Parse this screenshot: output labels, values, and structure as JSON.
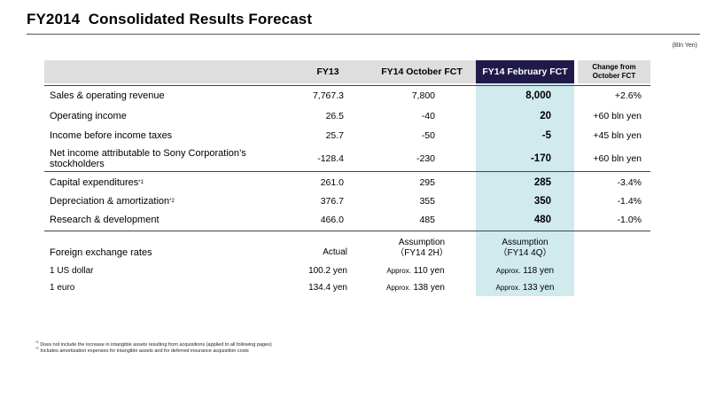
{
  "title": "FY2014  Consolidated Results Forecast",
  "unit": "(Bln Yen)",
  "headers": {
    "fy13": "FY13",
    "oct": "FY14 October FCT",
    "feb": "FY14 February FCT",
    "chg_line1": "Change from",
    "chg_line2": "October FCT"
  },
  "rows": [
    {
      "label": "Sales & operating revenue",
      "fy13": "7,767.3",
      "oct": "7,800",
      "feb": "8,000",
      "chg": "+2.6%"
    },
    {
      "label": "Operating income",
      "fy13": "26.5",
      "oct": "-40",
      "feb": "20",
      "chg": "+60 bln yen"
    },
    {
      "label": "Income before income taxes",
      "fy13": "25.7",
      "oct": "-50",
      "feb": "-5",
      "chg": "+45 bln yen"
    },
    {
      "label": "Net income attributable to Sony Corporation’s stockholders",
      "fy13": "-128.4",
      "oct": "-230",
      "feb": "-170",
      "chg": "+60 bln yen"
    },
    {
      "label": "Capital expenditures",
      "note": "*1",
      "fy13": "261.0",
      "oct": "295",
      "feb": "285",
      "chg": "-3.4%"
    },
    {
      "label": "Depreciation & amortization",
      "note": "*2",
      "fy13": "376.7",
      "oct": "355",
      "feb": "350",
      "chg": "-1.4%"
    },
    {
      "label": "Research & development",
      "fy13": "466.0",
      "oct": "485",
      "feb": "480",
      "chg": "-1.0%"
    }
  ],
  "fx": {
    "label": "Foreign exchange rates",
    "actual_label": "Actual",
    "asm_oct_1": "Assumption",
    "asm_oct_2": "（FY14 2H）",
    "asm_feb_1": "Assumption",
    "asm_feb_2": "（FY14 4Q）",
    "approx": "Approx.",
    "rows": [
      {
        "name": "1 US dollar",
        "actual": "100.2 yen",
        "oct": "110 yen",
        "feb": "118 yen"
      },
      {
        "name": "1 euro",
        "actual": "134.4 yen",
        "oct": "138 yen",
        "feb": "133 yen"
      }
    ]
  },
  "footnotes": [
    {
      "mark": "*1",
      "text": "Does not include the increase in intangible assets resulting from acquisitions (applied to all following pages)"
    },
    {
      "mark": "*2",
      "text": "Includes amortization expenses for intangible assets and for deferred insurance acquisition costs"
    }
  ],
  "colors": {
    "header_band": "#dedede",
    "highlight_header": "#1f1a4a",
    "highlight_column": "#d0eaee"
  }
}
